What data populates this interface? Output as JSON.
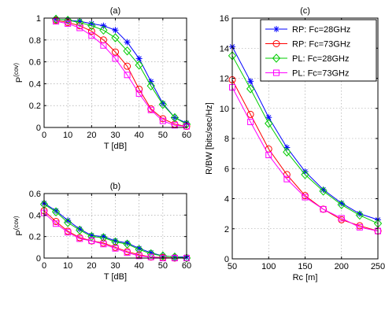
{
  "colors": {
    "RP_28": "#0000ff",
    "RP_73": "#ff0000",
    "PL_28": "#00cc00",
    "PL_73": "#ff00ff"
  },
  "legend_entries": [
    {
      "key": "RP_28",
      "label": "RP: Fc=28GHz",
      "marker": "star"
    },
    {
      "key": "RP_73",
      "label": "RP: Fc=73GHz",
      "marker": "circle"
    },
    {
      "key": "PL_28",
      "label": "PL: Fc=28GHz",
      "marker": "diamond"
    },
    {
      "key": "PL_73",
      "label": "PL: Fc=73GHz",
      "marker": "square"
    }
  ],
  "chart_data": [
    {
      "id": "a",
      "type": "line",
      "title": "(a)",
      "xlabel": "T [dB]",
      "ylabel_base": "P",
      "ylabel_sup": "(cov)",
      "xlim": [
        0,
        60
      ],
      "ylim": [
        0,
        1
      ],
      "xticks": [
        0,
        10,
        20,
        30,
        40,
        50,
        60
      ],
      "yticks": [
        0,
        0.2,
        0.4,
        0.6,
        0.8,
        1
      ],
      "ytick_labels": [
        "0",
        "0.2",
        "0.4",
        "0.6",
        "0.8",
        "1"
      ],
      "grid": true,
      "x": [
        5,
        10,
        15,
        20,
        25,
        30,
        35,
        40,
        45,
        50,
        55,
        60
      ],
      "series": [
        {
          "key": "RP_28",
          "values": [
            0.99,
            0.98,
            0.97,
            0.95,
            0.93,
            0.89,
            0.78,
            0.63,
            0.42,
            0.22,
            0.09,
            0.04
          ]
        },
        {
          "key": "RP_73",
          "values": [
            0.98,
            0.96,
            0.93,
            0.88,
            0.8,
            0.69,
            0.56,
            0.35,
            0.17,
            0.08,
            0.03,
            0.01
          ]
        },
        {
          "key": "PL_28",
          "values": [
            0.99,
            0.98,
            0.96,
            0.93,
            0.89,
            0.82,
            0.7,
            0.57,
            0.38,
            0.21,
            0.09,
            0.03
          ]
        },
        {
          "key": "PL_73",
          "values": [
            0.97,
            0.95,
            0.91,
            0.84,
            0.75,
            0.63,
            0.48,
            0.31,
            0.16,
            0.06,
            0.02,
            0.01
          ]
        }
      ]
    },
    {
      "id": "b",
      "type": "line",
      "title": "(b)",
      "xlabel": "T [dB]",
      "ylabel_base": "P",
      "ylabel_sup": "(cov)",
      "xlim": [
        0,
        60
      ],
      "ylim": [
        0,
        0.6
      ],
      "xticks": [
        0,
        10,
        20,
        30,
        40,
        50,
        60
      ],
      "yticks": [
        0,
        0.2,
        0.4,
        0.6
      ],
      "ytick_labels": [
        "0",
        "0.2",
        "0.4",
        "0.6"
      ],
      "grid": true,
      "x": [
        0,
        5,
        10,
        15,
        20,
        25,
        30,
        35,
        40,
        45,
        50,
        55,
        60
      ],
      "series": [
        {
          "key": "RP_28",
          "values": [
            0.51,
            0.44,
            0.35,
            0.27,
            0.21,
            0.2,
            0.16,
            0.14,
            0.09,
            0.05,
            0.02,
            0.01,
            0.01
          ]
        },
        {
          "key": "RP_73",
          "values": [
            0.44,
            0.34,
            0.25,
            0.19,
            0.16,
            0.14,
            0.1,
            0.06,
            0.03,
            0.01,
            0.005,
            0.0,
            0.0
          ]
        },
        {
          "key": "PL_28",
          "values": [
            0.5,
            0.43,
            0.33,
            0.26,
            0.2,
            0.19,
            0.15,
            0.13,
            0.08,
            0.04,
            0.02,
            0.01,
            0.0
          ]
        },
        {
          "key": "PL_73",
          "values": [
            0.42,
            0.32,
            0.24,
            0.18,
            0.16,
            0.13,
            0.09,
            0.05,
            0.02,
            0.01,
            0.0,
            0.0,
            0.0
          ]
        }
      ]
    },
    {
      "id": "c",
      "type": "line",
      "title": "(c)",
      "xlabel": "Rc [m]",
      "ylabel": "R/BW [bits/sec/Hz]",
      "xlim": [
        50,
        250
      ],
      "ylim": [
        0,
        16
      ],
      "xticks": [
        50,
        100,
        150,
        200,
        250
      ],
      "yticks": [
        0,
        2,
        4,
        6,
        8,
        10,
        12,
        14,
        16
      ],
      "ytick_labels": [
        "0",
        "2",
        "4",
        "6",
        "8",
        "10",
        "12",
        "14",
        "16"
      ],
      "grid": true,
      "legend_position": "top-right",
      "x": [
        50,
        75,
        100,
        125,
        150,
        175,
        200,
        225,
        250
      ],
      "series": [
        {
          "key": "RP_28",
          "values": [
            14.1,
            11.8,
            9.4,
            7.4,
            5.8,
            4.6,
            3.7,
            3.0,
            2.6
          ]
        },
        {
          "key": "RP_73",
          "values": [
            11.9,
            9.6,
            7.3,
            5.6,
            4.2,
            3.3,
            2.6,
            2.2,
            1.85
          ]
        },
        {
          "key": "PL_28",
          "values": [
            13.5,
            11.3,
            9.0,
            7.1,
            5.6,
            4.5,
            3.6,
            2.9,
            2.35
          ]
        },
        {
          "key": "PL_73",
          "values": [
            11.4,
            9.1,
            6.9,
            5.3,
            4.1,
            3.3,
            2.7,
            2.1,
            1.85
          ]
        }
      ]
    }
  ]
}
